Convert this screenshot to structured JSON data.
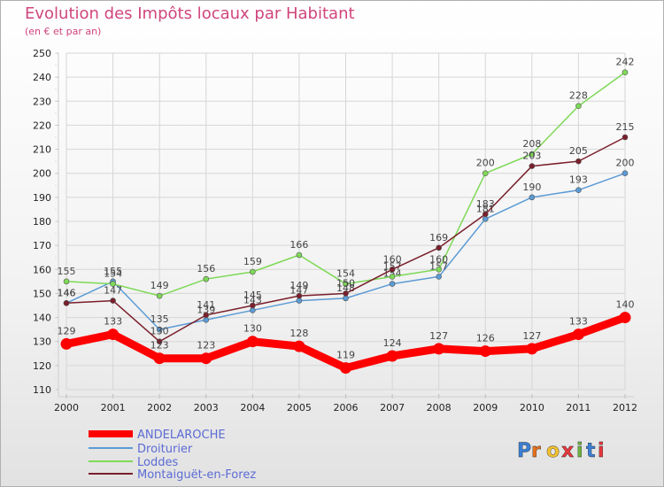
{
  "header": {
    "title": "Evolution des Impôts locaux par Habitant",
    "subtitle": "(en € et par an)"
  },
  "brand": {
    "letters": [
      "P",
      "r",
      "o",
      "x",
      "i",
      "t",
      "i"
    ]
  },
  "colors": {
    "brand_letters": [
      "#3a7fd5",
      "#e8711c",
      "#f2c12e",
      "#e8363b",
      "#6cb33f",
      "#3a7fd5",
      "#e8363b"
    ]
  },
  "chart_data": {
    "type": "line",
    "title": "Evolution des Impôts locaux par Habitant",
    "subtitle": "(en € et par an)",
    "xlabel": "",
    "ylabel": "",
    "x": [
      "2000",
      "2001",
      "2002",
      "2003",
      "2004",
      "2005",
      "2006",
      "2007",
      "2008",
      "2009",
      "2010",
      "2011",
      "2012"
    ],
    "ylim": [
      110,
      250
    ],
    "yticks": [
      110,
      120,
      130,
      140,
      150,
      160,
      170,
      180,
      190,
      200,
      210,
      220,
      230,
      240,
      250
    ],
    "grid": true,
    "legend_position": "bottom-left",
    "series": [
      {
        "name": "ANDELAROCHE",
        "color": "#ff0000",
        "thick": true,
        "values": [
          129,
          133,
          123,
          123,
          130,
          128,
          119,
          124,
          127,
          126,
          127,
          133,
          140
        ]
      },
      {
        "name": "Droiturier",
        "color": "#5b9bd5",
        "thick": false,
        "values": [
          146,
          155,
          135,
          139,
          143,
          147,
          148,
          154,
          157,
          181,
          190,
          193,
          200
        ]
      },
      {
        "name": "Loddes",
        "color": "#7ed957",
        "thick": false,
        "values": [
          155,
          154,
          149,
          156,
          159,
          166,
          154,
          157,
          160,
          200,
          208,
          228,
          242
        ]
      },
      {
        "name": "Montaiguët-en-Forez",
        "color": "#7a1f2b",
        "thick": false,
        "values": [
          146,
          147,
          130,
          141,
          145,
          149,
          150,
          160,
          169,
          183,
          203,
          205,
          215
        ]
      }
    ]
  }
}
